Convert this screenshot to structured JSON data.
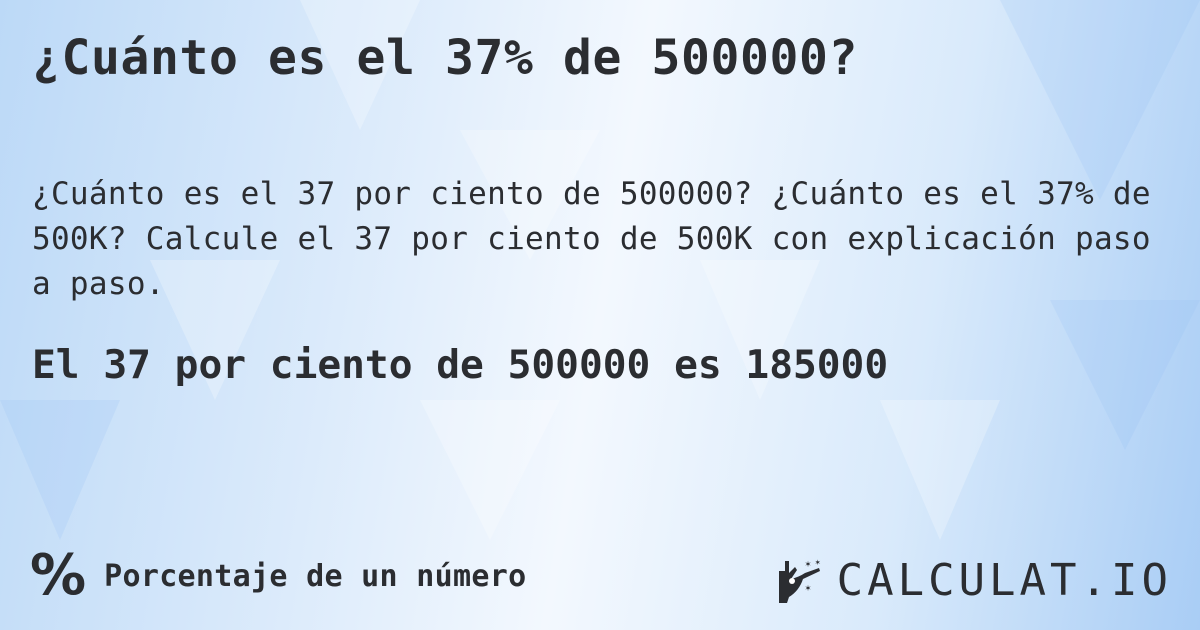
{
  "title": "¿Cuánto es el 37% de 500000?",
  "description": "¿Cuánto es el 37 por ciento de 500000? ¿Cuánto es el 37% de 500K? Calcule el 37 por ciento de 500K con explicación paso a paso.",
  "result": "El 37 por ciento de 500000 es 185000",
  "footer": {
    "category_icon": "percent-icon",
    "category": "Porcentaje de un número"
  },
  "logo": {
    "text": "CALCULAT.IO",
    "icon": "magic-hand-wand-icon"
  },
  "colors": {
    "text": "#2b2d31",
    "background": "#d9eafb"
  }
}
